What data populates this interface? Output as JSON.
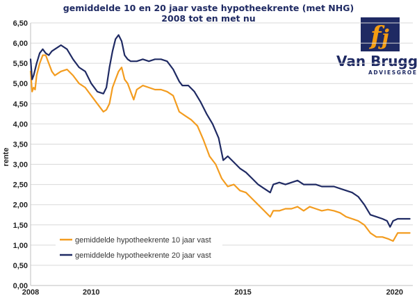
{
  "title": "gemiddelde 10 en 20 jaar vaste hypotheekrente (met NHG)",
  "subtitle": "2008 tot en met nu",
  "logo": {
    "name": "Van Bruggen",
    "tagline": "ADVIESGROEP",
    "brand_color": "#1f2a63",
    "accent_color": "#f39c12"
  },
  "chart_data": {
    "type": "line",
    "ylabel": "rente",
    "xlabel": "",
    "ylim": [
      0,
      6.5
    ],
    "xlim": [
      2008.0,
      2020.6
    ],
    "yticks": [
      "0,00",
      "0,50",
      "1,00",
      "1,50",
      "2,00",
      "2,50",
      "3,00",
      "3,50",
      "4,00",
      "4,50",
      "5,00",
      "5,50",
      "6,00",
      "6,50"
    ],
    "xticks": [
      {
        "value": 2008,
        "label": "2008"
      },
      {
        "value": 2010,
        "label": "2010"
      },
      {
        "value": 2015,
        "label": "2015"
      },
      {
        "value": 2020,
        "label": "2020"
      }
    ],
    "grid": true,
    "legend_position": "bottom-left",
    "series": [
      {
        "name": "gemiddelde hypotheekrente 10 jaar vast",
        "color": "#f39c1f",
        "x": [
          2008.0,
          2008.05,
          2008.1,
          2008.15,
          2008.2,
          2008.3,
          2008.4,
          2008.5,
          2008.6,
          2008.7,
          2008.8,
          2008.9,
          2009.0,
          2009.2,
          2009.4,
          2009.6,
          2009.8,
          2010.0,
          2010.2,
          2010.4,
          2010.5,
          2010.6,
          2010.7,
          2010.8,
          2010.9,
          2011.0,
          2011.1,
          2011.2,
          2011.3,
          2011.4,
          2011.5,
          2011.7,
          2011.9,
          2012.1,
          2012.3,
          2012.5,
          2012.7,
          2012.9,
          2013.1,
          2013.3,
          2013.5,
          2013.7,
          2013.9,
          2014.1,
          2014.3,
          2014.5,
          2014.7,
          2014.9,
          2015.1,
          2015.3,
          2015.5,
          2015.7,
          2015.9,
          2016.0,
          2016.2,
          2016.4,
          2016.6,
          2016.8,
          2017.0,
          2017.2,
          2017.4,
          2017.6,
          2017.8,
          2018.0,
          2018.2,
          2018.4,
          2018.6,
          2018.8,
          2019.0,
          2019.2,
          2019.4,
          2019.6,
          2019.8,
          2019.95,
          2020.1,
          2020.3,
          2020.5
        ],
        "y": [
          5.3,
          4.8,
          4.9,
          4.85,
          5.2,
          5.5,
          5.7,
          5.7,
          5.5,
          5.3,
          5.2,
          5.25,
          5.3,
          5.35,
          5.2,
          5.0,
          4.9,
          4.7,
          4.5,
          4.3,
          4.35,
          4.5,
          4.9,
          5.1,
          5.3,
          5.4,
          5.1,
          5.0,
          4.8,
          4.6,
          4.85,
          4.95,
          4.9,
          4.85,
          4.85,
          4.8,
          4.7,
          4.3,
          4.2,
          4.1,
          3.95,
          3.6,
          3.2,
          3.0,
          2.65,
          2.45,
          2.5,
          2.35,
          2.3,
          2.15,
          2.0,
          1.85,
          1.7,
          1.85,
          1.85,
          1.9,
          1.9,
          1.95,
          1.85,
          1.95,
          1.9,
          1.85,
          1.88,
          1.85,
          1.8,
          1.7,
          1.65,
          1.6,
          1.5,
          1.3,
          1.2,
          1.2,
          1.15,
          1.1,
          1.3,
          1.3,
          1.3
        ]
      },
      {
        "name": "gemiddelde hypotheekrente 20 jaar vast",
        "color": "#1f2a63",
        "x": [
          2008.0,
          2008.05,
          2008.1,
          2008.2,
          2008.3,
          2008.4,
          2008.5,
          2008.6,
          2008.7,
          2008.8,
          2008.9,
          2009.0,
          2009.2,
          2009.4,
          2009.6,
          2009.8,
          2010.0,
          2010.2,
          2010.4,
          2010.5,
          2010.6,
          2010.7,
          2010.8,
          2010.9,
          2011.0,
          2011.1,
          2011.2,
          2011.3,
          2011.5,
          2011.7,
          2011.9,
          2012.1,
          2012.3,
          2012.5,
          2012.7,
          2012.9,
          2013.0,
          2013.2,
          2013.4,
          2013.6,
          2013.8,
          2014.0,
          2014.2,
          2014.35,
          2014.5,
          2014.7,
          2014.9,
          2015.1,
          2015.3,
          2015.5,
          2015.7,
          2015.9,
          2016.0,
          2016.2,
          2016.4,
          2016.6,
          2016.8,
          2017.0,
          2017.2,
          2017.4,
          2017.6,
          2017.8,
          2018.0,
          2018.2,
          2018.4,
          2018.6,
          2018.8,
          2019.0,
          2019.2,
          2019.4,
          2019.6,
          2019.75,
          2019.85,
          2019.95,
          2020.1,
          2020.3,
          2020.5
        ],
        "y": [
          5.6,
          5.1,
          5.2,
          5.5,
          5.75,
          5.85,
          5.75,
          5.7,
          5.8,
          5.85,
          5.9,
          5.95,
          5.85,
          5.6,
          5.4,
          5.3,
          5.0,
          4.8,
          4.75,
          4.9,
          5.4,
          5.8,
          6.1,
          6.2,
          6.05,
          5.7,
          5.6,
          5.55,
          5.55,
          5.6,
          5.55,
          5.6,
          5.6,
          5.55,
          5.35,
          5.05,
          4.95,
          4.95,
          4.8,
          4.55,
          4.25,
          4.0,
          3.65,
          3.1,
          3.2,
          3.05,
          2.9,
          2.8,
          2.65,
          2.5,
          2.4,
          2.3,
          2.5,
          2.55,
          2.5,
          2.55,
          2.6,
          2.5,
          2.5,
          2.5,
          2.45,
          2.45,
          2.45,
          2.4,
          2.35,
          2.3,
          2.2,
          2.0,
          1.75,
          1.7,
          1.65,
          1.6,
          1.45,
          1.6,
          1.65,
          1.65,
          1.65
        ]
      }
    ]
  }
}
